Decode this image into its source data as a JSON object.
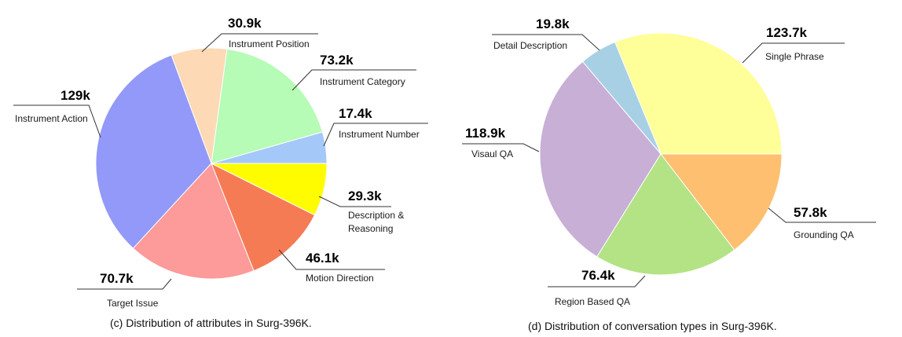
{
  "chart_data": [
    {
      "type": "pie",
      "title": "(c) Distribution of attributes in Surg-396K.",
      "start_angle_deg": 0,
      "direction": "counterclockwise",
      "slices": [
        {
          "label": "Instrument Number",
          "value": 17.4,
          "value_label": "17.4k",
          "color": "#a4c8f8"
        },
        {
          "label": "Instrument Category",
          "value": 73.2,
          "value_label": "73.2k",
          "color": "#b6fbb6"
        },
        {
          "label": "Instrument Position",
          "value": 30.9,
          "value_label": "30.9k",
          "color": "#fdd9b6"
        },
        {
          "label": "Instrument Action",
          "value": 129,
          "value_label": "129k",
          "color": "#9299f8"
        },
        {
          "label": "Target Issue",
          "value": 70.7,
          "value_label": "70.7k",
          "color": "#fd9a9a"
        },
        {
          "label": "Motion Direction",
          "value": 46.1,
          "value_label": "46.1k",
          "color": "#f57b55"
        },
        {
          "label": "Description & Reasoning",
          "label_lines": [
            "Description &",
            "Reasoning"
          ],
          "value": 29.3,
          "value_label": "29.3k",
          "color": "#fffc00"
        }
      ]
    },
    {
      "type": "pie",
      "title": "(d) Distribution of conversation types in Surg-396K.",
      "start_angle_deg": 0,
      "direction": "counterclockwise",
      "slices": [
        {
          "label": "Single Phrase",
          "value": 123.7,
          "value_label": "123.7k",
          "color": "#ffff99"
        },
        {
          "label": "Detail Description",
          "value": 19.8,
          "value_label": "19.8k",
          "color": "#a8d0e4"
        },
        {
          "label": "Visaul QA",
          "value": 118.9,
          "value_label": "118.9k",
          "color": "#c7afd6"
        },
        {
          "label": "Region Based QA",
          "value": 76.4,
          "value_label": "76.4k",
          "color": "#b3e384"
        },
        {
          "label": "Grounding QA",
          "value": 57.8,
          "value_label": "57.8k",
          "color": "#ffbf70"
        }
      ]
    }
  ]
}
